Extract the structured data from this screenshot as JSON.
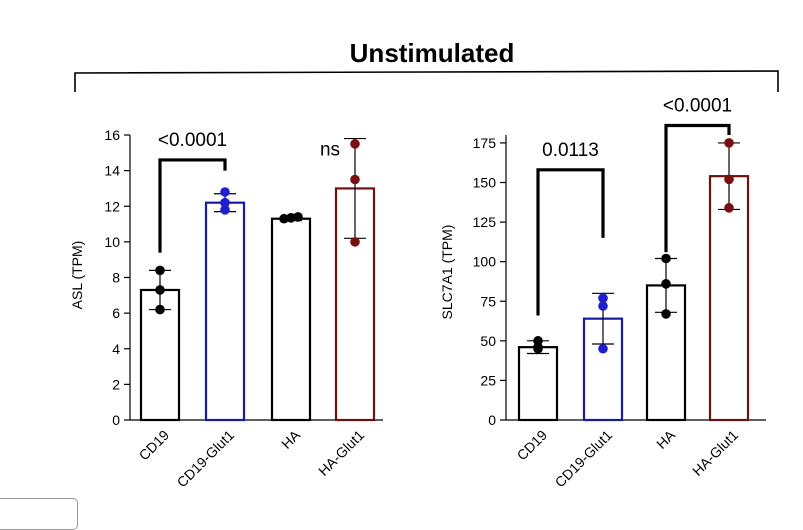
{
  "figure": {
    "title": "Unstimulated"
  },
  "colors": {
    "black": "#000000",
    "blue": "#1f1fd0",
    "darkred": "#7a0f0f",
    "blue_outline": "#1a1a9c",
    "darkred_outline": "#6b1212"
  },
  "chart_data": [
    {
      "type": "bar",
      "title": "",
      "xlabel": "",
      "ylabel": "ASL (TPM)",
      "categories": [
        "CD19",
        "CD19-Glut1",
        "HA",
        "HA-Glut1"
      ],
      "values": [
        7.3,
        12.2,
        11.3,
        13.0
      ],
      "error_bars": [
        1.1,
        0.5,
        0.1,
        2.8
      ],
      "points": [
        [
          8.4,
          7.3,
          6.2
        ],
        [
          12.8,
          12.2,
          11.8
        ],
        [
          11.3,
          11.35,
          11.4
        ],
        [
          15.5,
          13.5,
          10.0
        ]
      ],
      "bar_colors": [
        "#000000",
        "#1a1a9c",
        "#000000",
        "#6b1212"
      ],
      "point_colors": [
        "#000000",
        "#1f1fd0",
        "#000000",
        "#7a0f0f"
      ],
      "ylim": [
        0,
        16
      ],
      "yticks": [
        0,
        2,
        4,
        6,
        8,
        10,
        12,
        14,
        16
      ],
      "ytick_labels": [
        "0",
        "2",
        "4",
        "6",
        "8",
        "10",
        "12",
        "14",
        "16"
      ],
      "brackets": [
        {
          "from": 0,
          "to": 1,
          "label": "<0.0001",
          "y_top": 14.6,
          "y_left": 9.4,
          "y_right": 14.0
        },
        {
          "from": 3,
          "to": 3,
          "label": "ns",
          "y_top": 15.3
        }
      ]
    },
    {
      "type": "bar",
      "title": "",
      "xlabel": "",
      "ylabel": "SLC7A1 (TPM)",
      "categories": [
        "CD19",
        "CD19-Glut1",
        "HA",
        "HA-Glut1"
      ],
      "values": [
        46,
        64,
        85,
        154
      ],
      "error_bars": [
        4,
        16,
        17,
        21
      ],
      "points": [
        [
          50,
          46,
          45
        ],
        [
          77,
          72,
          45
        ],
        [
          102,
          86,
          67
        ],
        [
          175,
          152,
          134
        ]
      ],
      "bar_colors": [
        "#000000",
        "#1a1a9c",
        "#000000",
        "#6b1212"
      ],
      "point_colors": [
        "#000000",
        "#1f1fd0",
        "#000000",
        "#7a0f0f"
      ],
      "ylim": [
        0,
        180
      ],
      "yticks": [
        0,
        25,
        50,
        75,
        100,
        125,
        150,
        175
      ],
      "ytick_labels": [
        "0",
        "25",
        "50",
        "75",
        "100",
        "125",
        "150",
        "175"
      ],
      "brackets": [
        {
          "from": 0,
          "to": 1,
          "label": "0.0113",
          "y_top": 158,
          "y_left": 66,
          "y_right": 115
        },
        {
          "from": 2,
          "to": 3,
          "label": "<0.0001",
          "y_top": 186,
          "y_left": 106,
          "y_right": 180
        }
      ]
    }
  ]
}
